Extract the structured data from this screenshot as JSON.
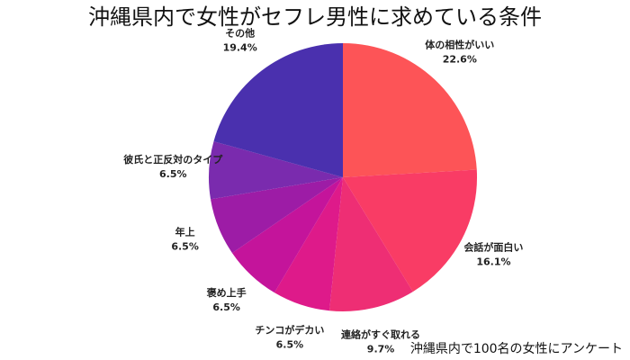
{
  "chart_data": {
    "type": "pie",
    "title": "沖縄県内で女性がセフレ男性に求めている条件",
    "note": "沖縄県内で100名の女性にアンケート",
    "categories": [
      "体の相性がいい",
      "会話が面白い",
      "連絡がすぐ取れる",
      "チンコがデカい",
      "褒め上手",
      "年上",
      "彼氏と正反対のタイプ",
      "その他"
    ],
    "values": [
      22.6,
      16.1,
      9.7,
      6.5,
      6.5,
      6.5,
      6.5,
      19.4
    ],
    "value_labels": [
      "22.6%",
      "16.1%",
      "9.7%",
      "6.5%",
      "6.5%",
      "6.5%",
      "6.5%",
      "19.4%"
    ],
    "colors": [
      "#fd5457",
      "#f93c65",
      "#ee2e74",
      "#de1a8a",
      "#c4149b",
      "#9d1ca6",
      "#7a2bae",
      "#4a30ae"
    ]
  }
}
